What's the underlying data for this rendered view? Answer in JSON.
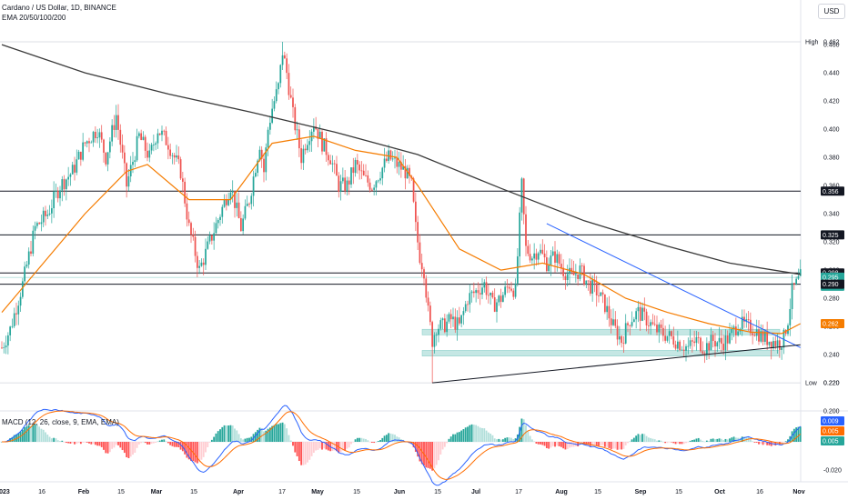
{
  "header": {
    "title": "Cardano / US Dollar, 1D, BINANCE",
    "indicator": "EMA 20/50/100/200",
    "currency": "USD"
  },
  "macd_label": "MACD (12, 26, close, 9, EMA, EMA)",
  "colors": {
    "up": "#26a69a",
    "down": "#ef5350",
    "ema_fast": "#f57c00",
    "ema_slow": "#3a3a3a",
    "trendline": "#2962ff",
    "support_zone": "#b2dfdb",
    "macd": "#2962ff",
    "signal": "#ff6d00"
  },
  "chart_data": [
    {
      "type": "candlestick",
      "title": "Cardano / US Dollar, 1D, BINANCE",
      "y_ticks": [
        "0.460",
        "0.440",
        "0.420",
        "0.400",
        "0.380",
        "0.360",
        "0.340",
        "0.320",
        "0.300",
        "0.280",
        "0.260",
        "0.240",
        "0.220",
        "0.200"
      ],
      "x_ticks": [
        "2023",
        "16",
        "Feb",
        "15",
        "Mar",
        "15",
        "Apr",
        "17",
        "May",
        "15",
        "Jun",
        "15",
        "Jul",
        "17",
        "Aug",
        "15",
        "Sep",
        "15",
        "Oct",
        "16",
        "Nov"
      ],
      "ylim": [
        0.195,
        0.468
      ],
      "price_path": [
        [
          0,
          0.245
        ],
        [
          4,
          0.258
        ],
        [
          10,
          0.29
        ],
        [
          16,
          0.33
        ],
        [
          22,
          0.34
        ],
        [
          28,
          0.36
        ],
        [
          34,
          0.37
        ],
        [
          40,
          0.39
        ],
        [
          46,
          0.4
        ],
        [
          50,
          0.38
        ],
        [
          55,
          0.41
        ],
        [
          60,
          0.36
        ],
        [
          66,
          0.395
        ],
        [
          71,
          0.38
        ],
        [
          75,
          0.4
        ],
        [
          80,
          0.39
        ],
        [
          86,
          0.37
        ],
        [
          90,
          0.33
        ],
        [
          95,
          0.3
        ],
        [
          100,
          0.32
        ],
        [
          105,
          0.34
        ],
        [
          110,
          0.36
        ],
        [
          115,
          0.33
        ],
        [
          119,
          0.35
        ],
        [
          124,
          0.39
        ],
        [
          126,
          0.37
        ],
        [
          128,
          0.4
        ],
        [
          130,
          0.415
        ],
        [
          133,
          0.43
        ],
        [
          135,
          0.455
        ],
        [
          137,
          0.44
        ],
        [
          140,
          0.41
        ],
        [
          144,
          0.38
        ],
        [
          146,
          0.39
        ],
        [
          150,
          0.405
        ],
        [
          154,
          0.39
        ],
        [
          158,
          0.38
        ],
        [
          162,
          0.36
        ],
        [
          166,
          0.36
        ],
        [
          170,
          0.375
        ],
        [
          174,
          0.365
        ],
        [
          178,
          0.36
        ],
        [
          182,
          0.37
        ],
        [
          186,
          0.38
        ],
        [
          190,
          0.375
        ],
        [
          194,
          0.37
        ],
        [
          197,
          0.36
        ],
        [
          199,
          0.33
        ],
        [
          201,
          0.31
        ],
        [
          203,
          0.3
        ],
        [
          205,
          0.27
        ],
        [
          207,
          0.25
        ],
        [
          209,
          0.26
        ],
        [
          212,
          0.26
        ],
        [
          216,
          0.265
        ],
        [
          220,
          0.26
        ],
        [
          224,
          0.28
        ],
        [
          228,
          0.285
        ],
        [
          232,
          0.29
        ],
        [
          236,
          0.275
        ],
        [
          240,
          0.28
        ],
        [
          244,
          0.29
        ],
        [
          247,
          0.285
        ],
        [
          250,
          0.36
        ],
        [
          252,
          0.315
        ],
        [
          255,
          0.31
        ],
        [
          258,
          0.315
        ],
        [
          262,
          0.305
        ],
        [
          266,
          0.31
        ],
        [
          270,
          0.3
        ],
        [
          274,
          0.295
        ],
        [
          278,
          0.3
        ],
        [
          282,
          0.29
        ],
        [
          286,
          0.285
        ],
        [
          290,
          0.275
        ],
        [
          294,
          0.26
        ],
        [
          298,
          0.25
        ],
        [
          302,
          0.265
        ],
        [
          306,
          0.27
        ],
        [
          310,
          0.265
        ],
        [
          314,
          0.258
        ],
        [
          318,
          0.255
        ],
        [
          322,
          0.252
        ],
        [
          326,
          0.248
        ],
        [
          330,
          0.245
        ],
        [
          334,
          0.25
        ],
        [
          338,
          0.245
        ],
        [
          342,
          0.25
        ],
        [
          346,
          0.248
        ],
        [
          350,
          0.252
        ],
        [
          354,
          0.262
        ],
        [
          358,
          0.26
        ],
        [
          362,
          0.258
        ],
        [
          366,
          0.252
        ],
        [
          370,
          0.25
        ],
        [
          374,
          0.248
        ],
        [
          376,
          0.252
        ],
        [
          378,
          0.265
        ],
        [
          380,
          0.285
        ],
        [
          382,
          0.29
        ],
        [
          384,
          0.295
        ]
      ],
      "ema_200": [
        [
          0,
          0.46
        ],
        [
          40,
          0.44
        ],
        [
          80,
          0.425
        ],
        [
          120,
          0.412
        ],
        [
          160,
          0.398
        ],
        [
          200,
          0.382
        ],
        [
          240,
          0.358
        ],
        [
          280,
          0.335
        ],
        [
          320,
          0.317
        ],
        [
          350,
          0.305
        ],
        [
          384,
          0.297
        ]
      ],
      "ema_50": [
        [
          0,
          0.27
        ],
        [
          20,
          0.305
        ],
        [
          40,
          0.34
        ],
        [
          60,
          0.37
        ],
        [
          70,
          0.375
        ],
        [
          90,
          0.35
        ],
        [
          110,
          0.35
        ],
        [
          130,
          0.39
        ],
        [
          150,
          0.395
        ],
        [
          170,
          0.385
        ],
        [
          190,
          0.38
        ],
        [
          200,
          0.36
        ],
        [
          220,
          0.315
        ],
        [
          240,
          0.3
        ],
        [
          260,
          0.305
        ],
        [
          280,
          0.297
        ],
        [
          300,
          0.28
        ],
        [
          320,
          0.27
        ],
        [
          340,
          0.262
        ],
        [
          360,
          0.256
        ],
        [
          375,
          0.255
        ],
        [
          384,
          0.262
        ]
      ],
      "horizontal_levels": [
        {
          "value": 0.462,
          "label": "High"
        },
        {
          "value": 0.356,
          "label": "0.356"
        },
        {
          "value": 0.325,
          "label": "0.325"
        },
        {
          "value": 0.298,
          "label": "0.298"
        },
        {
          "value": 0.29,
          "label": "0.290"
        },
        {
          "value": 0.22,
          "label": "Low"
        }
      ],
      "price_tags": [
        {
          "value": 0.462,
          "text": "High",
          "price": "0.462",
          "style": "plain"
        },
        {
          "value": 0.356,
          "text": "0.356",
          "style": "dark"
        },
        {
          "value": 0.325,
          "text": "0.325",
          "style": "dark"
        },
        {
          "value": 0.298,
          "text": "0.298",
          "style": "dark"
        },
        {
          "value": 0.295,
          "text": "0.295",
          "sub": "14:37:18",
          "style": "green"
        },
        {
          "value": 0.29,
          "text": "0.290",
          "style": "dark"
        },
        {
          "value": 0.262,
          "text": "0.262",
          "style": "orange"
        },
        {
          "value": 0.22,
          "text": "Low",
          "price": "0.220",
          "style": "plain"
        }
      ],
      "support_zones": [
        [
          0.254,
          0.258
        ],
        [
          0.239,
          0.243
        ]
      ],
      "descending_trendline": [
        [
          0.333,
          0.245
        ]
      ],
      "ascending_trendline": [
        [
          0.22,
          0.247
        ]
      ]
    },
    {
      "type": "macd",
      "title": "MACD (12, 26, close, 9, EMA, EMA)",
      "y_ticks": [
        "0.000",
        "-0.020"
      ],
      "ylim": [
        -0.028,
        0.014
      ],
      "values_right": [
        "0.009",
        "0.005",
        "0.005"
      ]
    }
  ]
}
